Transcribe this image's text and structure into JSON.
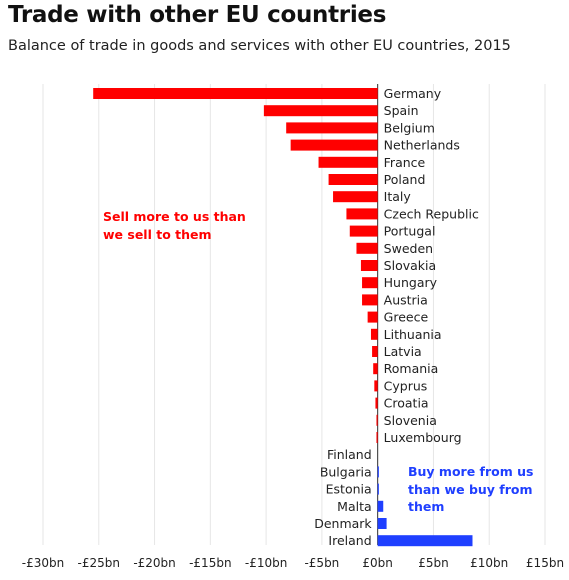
{
  "title": "Trade with other EU countries",
  "subtitle": "Balance of trade in goods and services with other EU countries, 2015",
  "colors": {
    "negative": "#ff0000",
    "positive": "#1f3fff",
    "grid": "#e6e6e6",
    "axis": "#333333"
  },
  "annotations": {
    "negative_line1": "Sell more to us than",
    "negative_line2": "we sell to them",
    "positive_line1": "Buy more from us",
    "positive_line2": "than we buy from",
    "positive_line3": "them"
  },
  "chart_data": {
    "type": "bar",
    "orientation": "horizontal",
    "title": "Trade with other EU countries",
    "subtitle": "Balance of trade in goods and services with other EU countries, 2015",
    "xlabel": "",
    "ylabel": "",
    "xlim": [
      -30,
      15
    ],
    "grid": true,
    "categories": [
      "Germany",
      "Spain",
      "Belgium",
      "Netherlands",
      "France",
      "Poland",
      "Italy",
      "Czech Republic",
      "Portugal",
      "Sweden",
      "Slovakia",
      "Hungary",
      "Austria",
      "Greece",
      "Lithuania",
      "Latvia",
      "Romania",
      "Cyprus",
      "Croatia",
      "Slovenia",
      "Luxembourg",
      "Finland",
      "Bulgaria",
      "Estonia",
      "Malta",
      "Denmark",
      "Ireland"
    ],
    "values": [
      -25.5,
      -10.2,
      -8.2,
      -7.8,
      -5.3,
      -4.4,
      -4.0,
      -2.8,
      -2.5,
      -1.9,
      -1.5,
      -1.4,
      -1.4,
      -0.9,
      -0.6,
      -0.5,
      -0.4,
      -0.3,
      -0.2,
      -0.1,
      -0.1,
      0.0,
      0.1,
      0.1,
      0.5,
      0.8,
      8.5
    ],
    "tick_values": [
      -30,
      -25,
      -20,
      -15,
      -10,
      -5,
      0,
      5,
      10,
      15
    ],
    "tick_labels": [
      "-£30bn",
      "-£25bn",
      "-£20bn",
      "-£15bn",
      "-£10bn",
      "-£5bn",
      "£0bn",
      "£5bn",
      "£10bn",
      "£15bn"
    ]
  }
}
